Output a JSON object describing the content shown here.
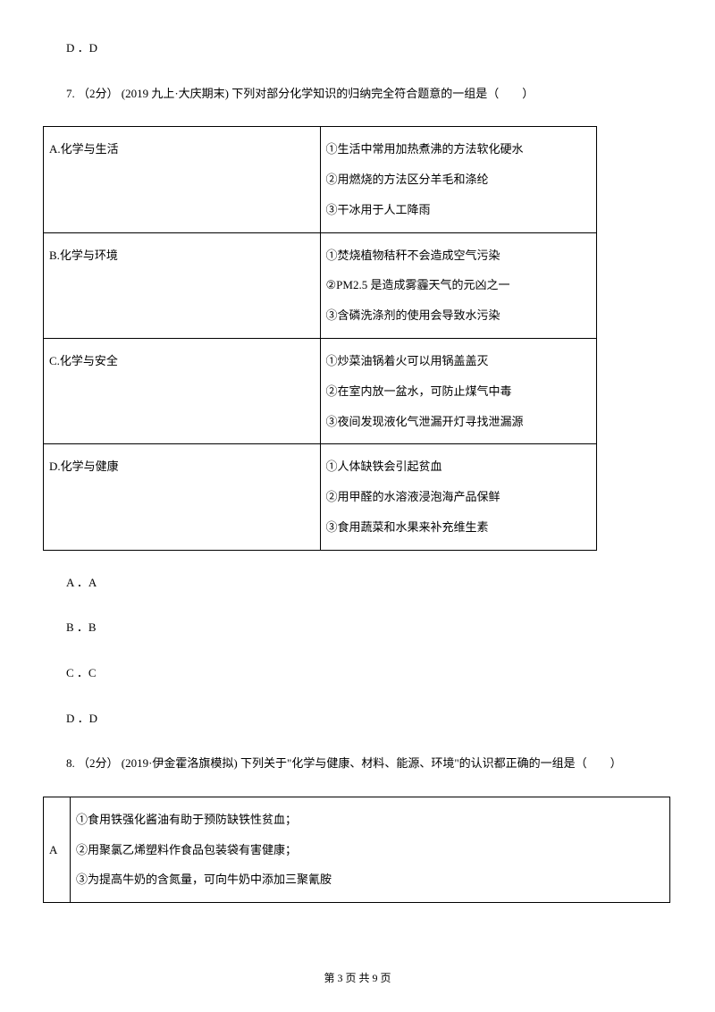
{
  "line_d": "D ．D",
  "q7": {
    "number": "7.",
    "points": "（2分）",
    "source": "(2019 九上·大庆期末)",
    "text": "下列对部分化学知识的归纳完全符合题意的一组是（　　）"
  },
  "table7": {
    "rows": [
      {
        "left": "A.化学与生活",
        "right": [
          "①生活中常用加热煮沸的方法软化硬水",
          "②用燃烧的方法区分羊毛和涤纶",
          "③干冰用于人工降雨"
        ]
      },
      {
        "left": "B.化学与环境",
        "right": [
          "①焚烧植物秸秆不会造成空气污染",
          "②PM2.5 是造成雾霾天气的元凶之一",
          "③含磷洗涤剂的使用会导致水污染"
        ]
      },
      {
        "left": "C.化学与安全",
        "right": [
          "①炒菜油锅着火可以用锅盖盖灭",
          "②在室内放一盆水，可防止煤气中毒",
          "③夜间发现液化气泄漏开灯寻找泄漏源"
        ]
      },
      {
        "left": "D.化学与健康",
        "right": [
          "①人体缺铁会引起贫血",
          "②用甲醛的水溶液浸泡海产品保鲜",
          "③食用蔬菜和水果来补充维生素"
        ]
      }
    ]
  },
  "options": {
    "a": "A ．A",
    "b": "B ．B",
    "c": "C ．C",
    "d": "D ．D"
  },
  "q8": {
    "number": "8.",
    "points": "（2分）",
    "source": "(2019·伊金霍洛旗模拟)",
    "text": "下列关于\"化学与健康、材料、能源、环境\"的认识都正确的一组是（　　）"
  },
  "table8": {
    "rows": [
      {
        "left": "A",
        "right": [
          "①食用铁强化酱油有助于预防缺铁性贫血；",
          "②用聚氯乙烯塑料作食品包装袋有害健康；",
          "③为提高牛奶的含氮量，可向牛奶中添加三聚氰胺"
        ]
      }
    ]
  },
  "footer": "第 3 页 共 9 页"
}
